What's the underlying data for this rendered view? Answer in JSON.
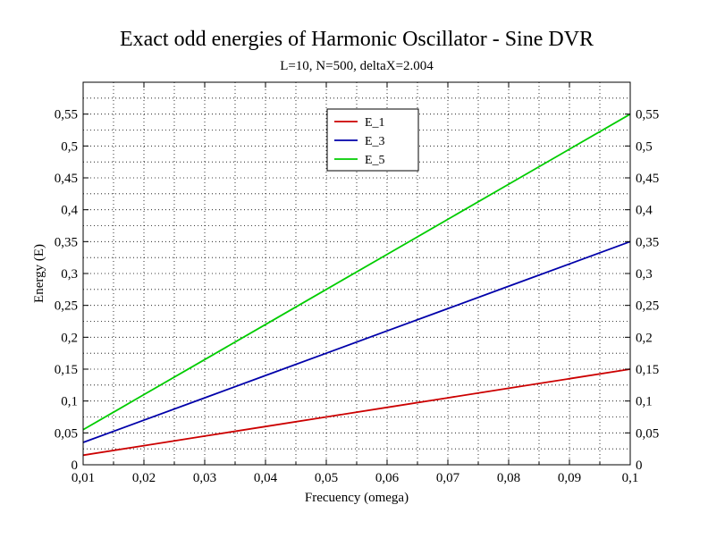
{
  "chart_data": {
    "type": "line",
    "title": "Exact odd energies of Harmonic Oscillator - Sine DVR",
    "subtitle": "L=10, N=500, deltaX=2.004",
    "xlabel": "Frecuency (omega)",
    "ylabel": "Energy (E)",
    "xlim": [
      0.01,
      0.1
    ],
    "ylim": [
      0,
      0.6
    ],
    "x_ticks": [
      "0,01",
      "0,02",
      "0,03",
      "0,04",
      "0,05",
      "0,06",
      "0,07",
      "0,08",
      "0,09",
      "0,1"
    ],
    "y_ticks": [
      "0",
      "0,05",
      "0,1",
      "0,15",
      "0,2",
      "0,25",
      "0,3",
      "0,35",
      "0,4",
      "0,45",
      "0,5",
      "0,55"
    ],
    "grid": true,
    "legend_position": "top-center",
    "x": [
      0.01,
      0.02,
      0.03,
      0.04,
      0.05,
      0.06,
      0.07,
      0.08,
      0.09,
      0.1
    ],
    "series": [
      {
        "name": "E_1",
        "color": "#cc0000",
        "values": [
          0.015,
          0.03,
          0.045,
          0.06,
          0.075,
          0.09,
          0.105,
          0.12,
          0.135,
          0.15
        ]
      },
      {
        "name": "E_3",
        "color": "#0000aa",
        "values": [
          0.035,
          0.07,
          0.105,
          0.14,
          0.175,
          0.21,
          0.245,
          0.28,
          0.315,
          0.35
        ]
      },
      {
        "name": "E_5",
        "color": "#00cc00",
        "values": [
          0.055,
          0.11,
          0.165,
          0.22,
          0.275,
          0.33,
          0.385,
          0.44,
          0.495,
          0.55
        ]
      }
    ]
  }
}
